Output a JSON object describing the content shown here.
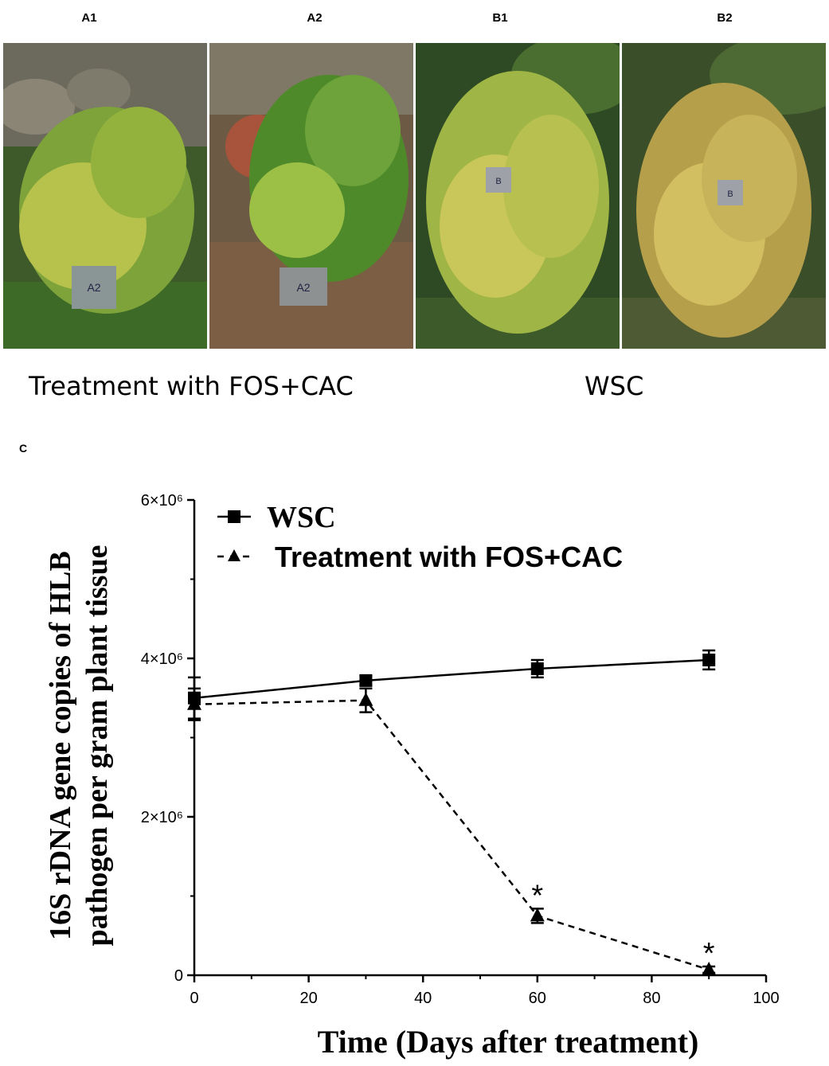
{
  "panels": {
    "a1": {
      "letter": "A1",
      "tag": "A2"
    },
    "a2": {
      "letter": "A2",
      "tag": "A2"
    },
    "b1": {
      "letter": "B1",
      "tag": "B"
    },
    "b2": {
      "letter": "B2",
      "tag": "B"
    }
  },
  "captions": {
    "left": "Treatment with FOS+CAC",
    "right": "WSC"
  },
  "panel_c_letter": "C",
  "colors": {
    "foliage_green": "#4e8a2a",
    "foliage_yellow": "#c9c25a",
    "line": "#000000"
  },
  "chart_data": {
    "type": "line",
    "xlabel": "Time (Days after treatment)",
    "ylabel_line1": "16S rDNA gene copies  of HLB",
    "ylabel_line2": "pathogen per gram plant tissue",
    "xlim": [
      0,
      100
    ],
    "ylim": [
      0,
      6000000
    ],
    "x_ticks": [
      0,
      20,
      40,
      60,
      80,
      100
    ],
    "y_ticks": [
      {
        "value": 0,
        "label": "0"
      },
      {
        "value": 2000000,
        "label": "2×10⁶"
      },
      {
        "value": 4000000,
        "label": "4×10⁶"
      },
      {
        "value": 6000000,
        "label": "6×10⁶"
      }
    ],
    "legend_position": "top-left",
    "series": [
      {
        "name": "WSC",
        "marker": "square",
        "dash": "solid",
        "x": [
          0,
          30,
          60,
          90
        ],
        "y": [
          3500000,
          3720000,
          3870000,
          3980000
        ],
        "err": [
          260000,
          60000,
          110000,
          120000
        ]
      },
      {
        "name": "Treatment with FOS+CAC",
        "marker": "triangle",
        "dash": "dashed",
        "x": [
          0,
          30,
          60,
          90
        ],
        "y": [
          3420000,
          3470000,
          750000,
          70000
        ],
        "err": [
          200000,
          150000,
          90000,
          40000
        ]
      }
    ],
    "annotations": [
      {
        "x": 60,
        "text": "*"
      },
      {
        "x": 90,
        "text": "*"
      }
    ]
  }
}
